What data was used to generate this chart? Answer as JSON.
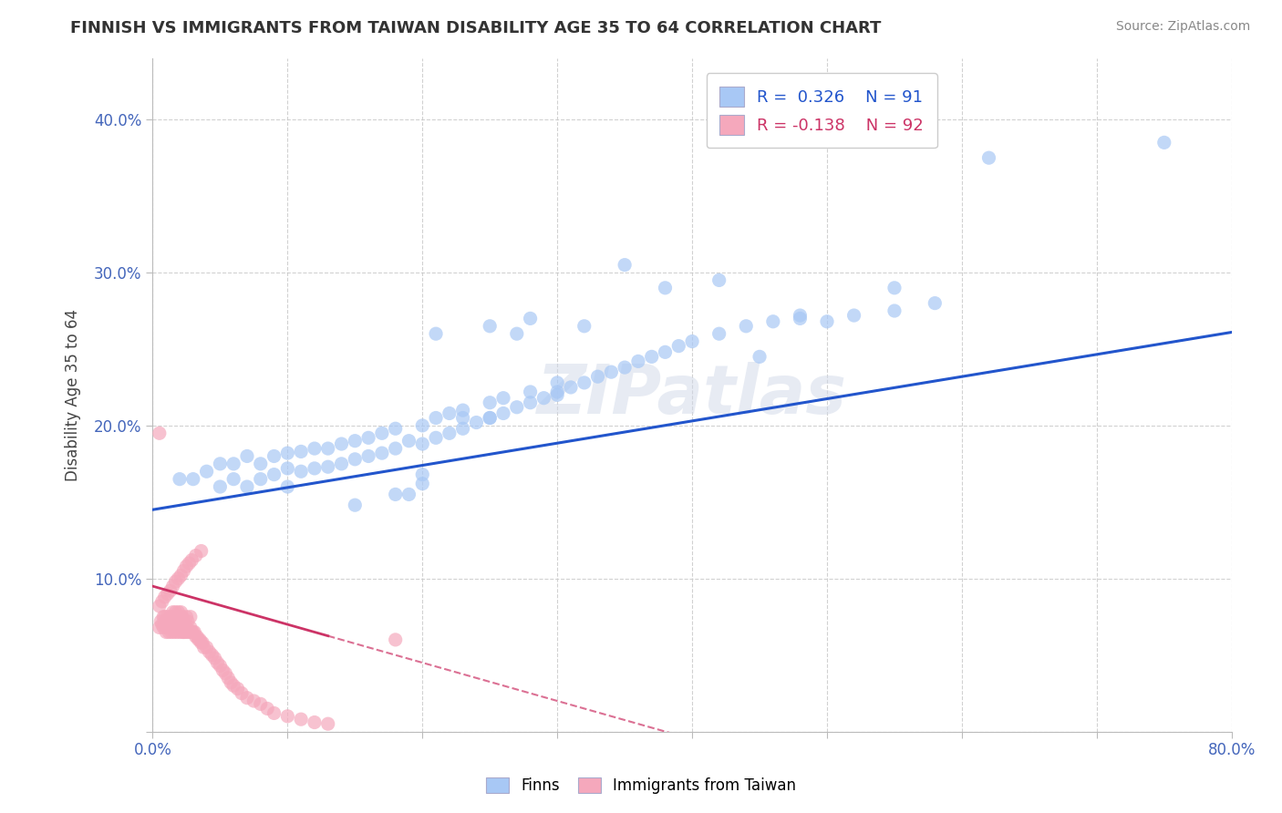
{
  "title": "FINNISH VS IMMIGRANTS FROM TAIWAN DISABILITY AGE 35 TO 64 CORRELATION CHART",
  "source": "Source: ZipAtlas.com",
  "ylabel": "Disability Age 35 to 64",
  "xlim": [
    0.0,
    0.8
  ],
  "ylim": [
    0.0,
    0.44
  ],
  "r_finns": 0.326,
  "n_finns": 91,
  "r_taiwan": -0.138,
  "n_taiwan": 92,
  "finns_color": "#a8c8f5",
  "taiwan_color": "#f5a8bc",
  "finns_line_color": "#2255cc",
  "taiwan_line_color": "#cc3366",
  "watermark": "ZIPatlas",
  "background_color": "#ffffff",
  "grid_color": "#cccccc",
  "finns_x": [
    0.02,
    0.03,
    0.04,
    0.05,
    0.05,
    0.06,
    0.06,
    0.07,
    0.07,
    0.08,
    0.08,
    0.09,
    0.09,
    0.1,
    0.1,
    0.1,
    0.11,
    0.11,
    0.12,
    0.12,
    0.13,
    0.13,
    0.14,
    0.14,
    0.15,
    0.15,
    0.16,
    0.16,
    0.17,
    0.17,
    0.18,
    0.18,
    0.19,
    0.2,
    0.2,
    0.21,
    0.21,
    0.22,
    0.22,
    0.23,
    0.23,
    0.24,
    0.25,
    0.25,
    0.26,
    0.26,
    0.27,
    0.28,
    0.28,
    0.29,
    0.3,
    0.3,
    0.31,
    0.32,
    0.33,
    0.34,
    0.35,
    0.36,
    0.37,
    0.38,
    0.39,
    0.4,
    0.42,
    0.44,
    0.46,
    0.48,
    0.5,
    0.52,
    0.55,
    0.58,
    0.21,
    0.25,
    0.19,
    0.23,
    0.28,
    0.32,
    0.15,
    0.18,
    0.2,
    0.27,
    0.35,
    0.62,
    0.75,
    0.55,
    0.45,
    0.48,
    0.38,
    0.42,
    0.3,
    0.25,
    0.2
  ],
  "finns_y": [
    0.165,
    0.165,
    0.17,
    0.16,
    0.175,
    0.165,
    0.175,
    0.16,
    0.18,
    0.165,
    0.175,
    0.168,
    0.18,
    0.16,
    0.172,
    0.182,
    0.17,
    0.183,
    0.172,
    0.185,
    0.173,
    0.185,
    0.175,
    0.188,
    0.178,
    0.19,
    0.18,
    0.192,
    0.182,
    0.195,
    0.185,
    0.198,
    0.19,
    0.188,
    0.2,
    0.192,
    0.205,
    0.195,
    0.208,
    0.198,
    0.21,
    0.202,
    0.205,
    0.215,
    0.208,
    0.218,
    0.212,
    0.215,
    0.222,
    0.218,
    0.222,
    0.228,
    0.225,
    0.228,
    0.232,
    0.235,
    0.238,
    0.242,
    0.245,
    0.248,
    0.252,
    0.255,
    0.26,
    0.265,
    0.268,
    0.272,
    0.268,
    0.272,
    0.275,
    0.28,
    0.26,
    0.265,
    0.155,
    0.205,
    0.27,
    0.265,
    0.148,
    0.155,
    0.162,
    0.26,
    0.305,
    0.375,
    0.385,
    0.29,
    0.245,
    0.27,
    0.29,
    0.295,
    0.22,
    0.205,
    0.168
  ],
  "taiwan_x": [
    0.005,
    0.006,
    0.007,
    0.008,
    0.008,
    0.009,
    0.009,
    0.01,
    0.01,
    0.011,
    0.011,
    0.012,
    0.012,
    0.013,
    0.013,
    0.014,
    0.014,
    0.015,
    0.015,
    0.016,
    0.016,
    0.017,
    0.017,
    0.018,
    0.018,
    0.019,
    0.019,
    0.02,
    0.02,
    0.021,
    0.021,
    0.022,
    0.022,
    0.023,
    0.023,
    0.024,
    0.025,
    0.025,
    0.026,
    0.026,
    0.027,
    0.028,
    0.028,
    0.029,
    0.03,
    0.031,
    0.032,
    0.033,
    0.034,
    0.035,
    0.036,
    0.037,
    0.038,
    0.04,
    0.042,
    0.044,
    0.046,
    0.048,
    0.05,
    0.052,
    0.054,
    0.056,
    0.058,
    0.06,
    0.063,
    0.066,
    0.07,
    0.075,
    0.08,
    0.085,
    0.09,
    0.1,
    0.11,
    0.12,
    0.13,
    0.005,
    0.007,
    0.009,
    0.011,
    0.013,
    0.015,
    0.017,
    0.019,
    0.021,
    0.023,
    0.025,
    0.027,
    0.029,
    0.032,
    0.036,
    0.005,
    0.18
  ],
  "taiwan_y": [
    0.068,
    0.072,
    0.07,
    0.068,
    0.075,
    0.07,
    0.075,
    0.065,
    0.072,
    0.068,
    0.075,
    0.065,
    0.072,
    0.068,
    0.075,
    0.065,
    0.072,
    0.068,
    0.078,
    0.065,
    0.075,
    0.068,
    0.078,
    0.065,
    0.075,
    0.068,
    0.078,
    0.065,
    0.075,
    0.068,
    0.078,
    0.065,
    0.075,
    0.065,
    0.072,
    0.065,
    0.068,
    0.075,
    0.065,
    0.072,
    0.065,
    0.068,
    0.075,
    0.065,
    0.065,
    0.065,
    0.062,
    0.062,
    0.06,
    0.06,
    0.058,
    0.058,
    0.055,
    0.055,
    0.052,
    0.05,
    0.048,
    0.045,
    0.043,
    0.04,
    0.038,
    0.035,
    0.032,
    0.03,
    0.028,
    0.025,
    0.022,
    0.02,
    0.018,
    0.015,
    0.012,
    0.01,
    0.008,
    0.006,
    0.005,
    0.082,
    0.085,
    0.088,
    0.09,
    0.092,
    0.095,
    0.098,
    0.1,
    0.102,
    0.105,
    0.108,
    0.11,
    0.112,
    0.115,
    0.118,
    0.195,
    0.06
  ]
}
